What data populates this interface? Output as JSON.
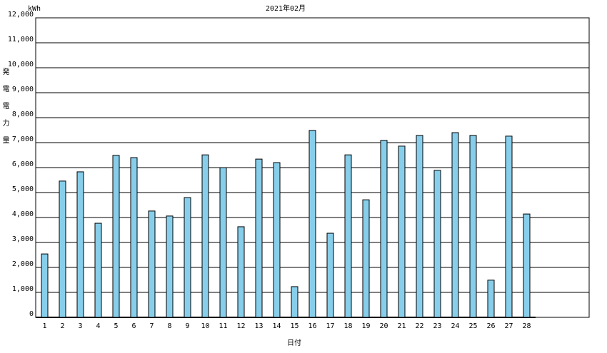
{
  "chart_data": {
    "type": "bar",
    "title": "2021年02月",
    "unit": "kWh",
    "ylabel": "発電電力量",
    "xlabel": "日付",
    "categories": [
      "1",
      "2",
      "3",
      "4",
      "5",
      "6",
      "7",
      "8",
      "9",
      "10",
      "11",
      "12",
      "13",
      "14",
      "15",
      "16",
      "17",
      "18",
      "19",
      "20",
      "21",
      "22",
      "23",
      "24",
      "25",
      "26",
      "27",
      "28"
    ],
    "values": [
      2540,
      5460,
      5830,
      3770,
      6490,
      6400,
      4260,
      4060,
      4800,
      6510,
      6000,
      3630,
      6340,
      6200,
      1230,
      7490,
      3370,
      6510,
      4710,
      7090,
      6860,
      7290,
      5890,
      7400,
      7290,
      1490,
      7260,
      4140
    ],
    "color": "#87ceeb",
    "ylim": [
      0,
      12000
    ],
    "yticks": [
      0,
      {
        "value": 1000,
        "label": "1,000"
      },
      {
        "value": 2000,
        "label": "2,000"
      },
      {
        "value": 3000,
        "label": "3,000"
      },
      {
        "value": 4000,
        "label": "4,000"
      },
      {
        "value": 5000,
        "label": "5,000"
      },
      {
        "value": 6000,
        "label": "6,000"
      },
      {
        "value": 7000,
        "label": "7,000"
      },
      {
        "value": 8000,
        "label": "8,000"
      },
      {
        "value": 9000,
        "label": "9,000"
      },
      {
        "value": 10000,
        "label": "10,000"
      },
      {
        "value": 11000,
        "label": "11,000"
      },
      {
        "value": 12000,
        "label": "12,000"
      }
    ],
    "grid": true
  }
}
